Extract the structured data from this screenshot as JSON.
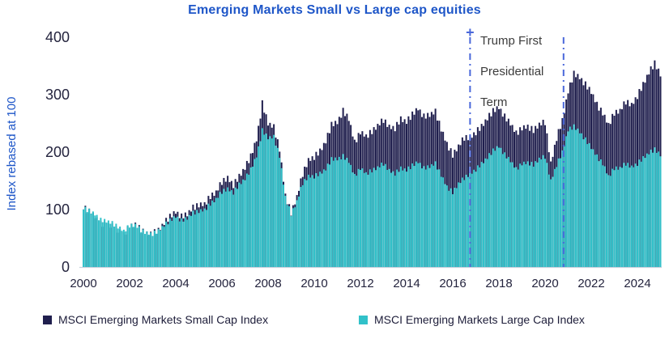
{
  "title": "Emerging Markets Small vs Large cap equities",
  "y_axis": {
    "label": "Index rebased at 100",
    "tick_labels": [
      "400",
      "300",
      "200",
      "100",
      "0"
    ],
    "tick_values": [
      400,
      300,
      200,
      100,
      0
    ],
    "min": 0,
    "max": 400
  },
  "x_axis": {
    "tick_labels": [
      "2000",
      "2002",
      "2004",
      "2006",
      "2008",
      "2010",
      "2012",
      "2014",
      "2016",
      "2018",
      "2020",
      "2022",
      "2024"
    ],
    "tick_years": [
      2000,
      2002,
      2004,
      2006,
      2008,
      2010,
      2012,
      2014,
      2016,
      2018,
      2020,
      2022,
      2024
    ]
  },
  "annotation": {
    "lines": [
      "Trump First",
      "Presidential",
      "Term"
    ]
  },
  "events": [
    {
      "name": "trump-first-term-start",
      "year": 2016.75,
      "marker": "cross",
      "style": "dash-dot"
    },
    {
      "name": "trump-first-term-end",
      "year": 2020.8,
      "marker": "none",
      "style": "dash-dot"
    }
  ],
  "legend": [
    {
      "label": "MSCI Emerging Markets Small Cap Index",
      "color": "#201f4e"
    },
    {
      "label": "MSCI Emerging Markets Large Cap Index",
      "color": "#31c1c9"
    }
  ],
  "colors": {
    "title_blue": "#1e56c8",
    "axis_text": "#24243e",
    "small_cap_navy": "#201f4e",
    "large_cap_teal": "#31c1c9",
    "event_line_blue": "#4a68da",
    "annotation_text": "#3c3c3c",
    "baseline_gray": "#c8d0dc"
  },
  "chart_data": {
    "type": "area",
    "x_unit": "year",
    "x_start": 2000.0,
    "x_step": 0.25,
    "xlim": [
      2000.0,
      2025.2
    ],
    "ylim": [
      0,
      400
    ],
    "title": "Emerging Markets Small vs Large cap equities",
    "xlabel": "",
    "ylabel": "Index rebased at 100",
    "grid": false,
    "legend_position": "bottom",
    "texture_amplitude": 4,
    "series": [
      {
        "name": "MSCI Emerging Markets Small Cap Index",
        "color": "#201f4e",
        "values": [
          103,
          97,
          88,
          75,
          74,
          70,
          64,
          58,
          70,
          74,
          64,
          58,
          59,
          64,
          76,
          88,
          96,
          88,
          92,
          103,
          108,
          110,
          123,
          130,
          148,
          155,
          143,
          158,
          172,
          193,
          222,
          285,
          250,
          243,
          205,
          125,
          94,
          122,
          162,
          186,
          192,
          202,
          218,
          248,
          252,
          272,
          258,
          216,
          235,
          228,
          236,
          246,
          256,
          244,
          242,
          258,
          252,
          266,
          276,
          262,
          265,
          270,
          240,
          215,
          195,
          210,
          225,
          225,
          235,
          245,
          258,
          272,
          278,
          262,
          250,
          232,
          242,
          245,
          238,
          248,
          252,
          180,
          225,
          255,
          305,
          337,
          330,
          318,
          305,
          282,
          268,
          248,
          268,
          272,
          288,
          282,
          298,
          318,
          338,
          355,
          335
        ]
      },
      {
        "name": "MSCI Emerging Markets Large Cap Index",
        "color": "#31c1c9",
        "values": [
          102,
          98,
          92,
          82,
          80,
          76,
          70,
          63,
          72,
          73,
          64,
          59,
          58,
          63,
          72,
          81,
          88,
          81,
          85,
          94,
          97,
          100,
          110,
          118,
          131,
          136,
          130,
          144,
          153,
          170,
          193,
          238,
          225,
          226,
          193,
          122,
          92,
          114,
          146,
          158,
          158,
          163,
          170,
          188,
          188,
          193,
          184,
          158,
          172,
          163,
          168,
          173,
          180,
          168,
          163,
          172,
          168,
          177,
          183,
          172,
          175,
          180,
          160,
          140,
          130,
          145,
          155,
          162,
          170,
          180,
          190,
          203,
          210,
          196,
          185,
          170,
          180,
          182,
          178,
          188,
          192,
          150,
          178,
          200,
          238,
          245,
          235,
          222,
          208,
          192,
          180,
          158,
          172,
          172,
          180,
          174,
          180,
          190,
          198,
          205,
          195
        ]
      }
    ]
  }
}
